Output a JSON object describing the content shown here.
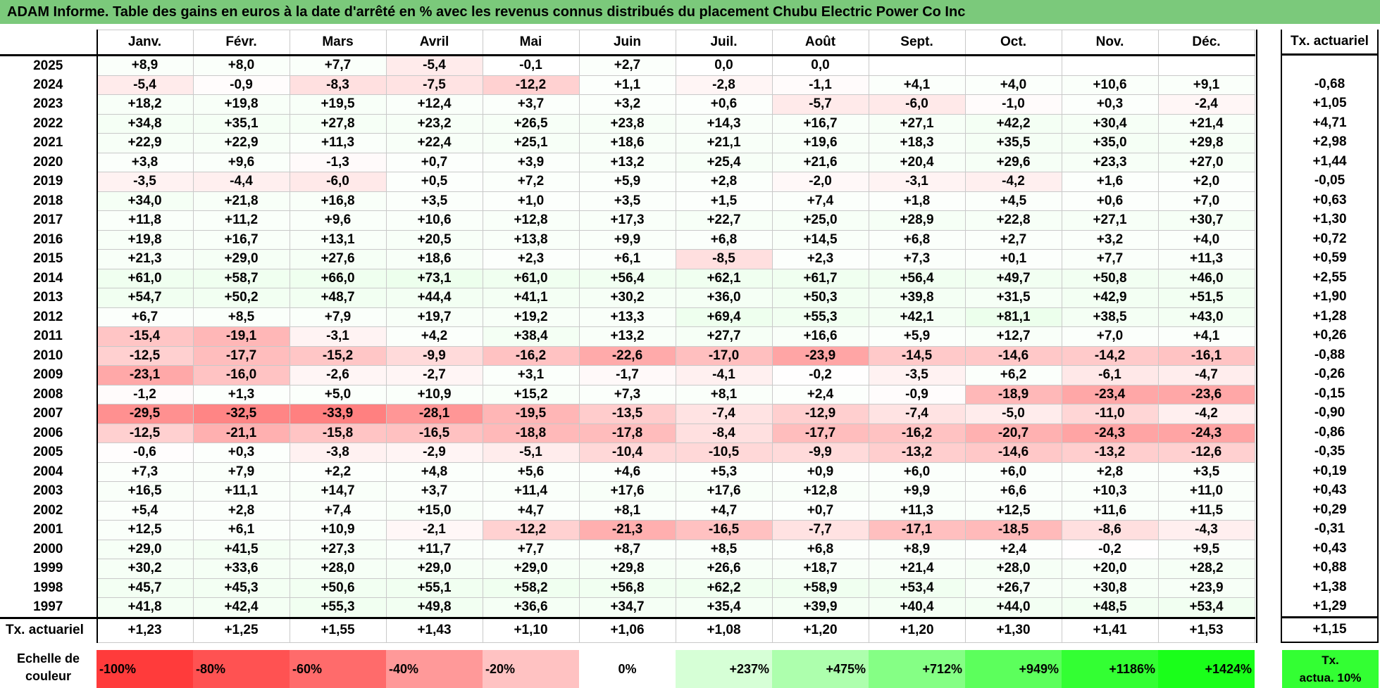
{
  "title": "ADAM Informe. Table des gains en euros à la date d'arrêté en % avec les revenus connus distribués du placement Chubu Electric Power Co Inc",
  "colors": {
    "title_bar": "#7bc97b",
    "neg_base": "#ff0000",
    "pos_base": "#00ff00",
    "legend_act": "#33ff33"
  },
  "chart_data": {
    "type": "table",
    "months": [
      "Janv.",
      "Févr.",
      "Mars",
      "Avril",
      "Mai",
      "Juin",
      "Juil.",
      "Août",
      "Sept.",
      "Oct.",
      "Nov.",
      "Déc."
    ],
    "actuarial_header": "Tx. actuariel",
    "rows": [
      {
        "year": "2025",
        "values": [
          "+8,9",
          "+8,0",
          "+7,7",
          "-5,4",
          "-0,1",
          "+2,7",
          "0,0",
          "0,0",
          "",
          "",
          "",
          ""
        ],
        "rate": ""
      },
      {
        "year": "2024",
        "values": [
          "-5,4",
          "-0,9",
          "-8,3",
          "-7,5",
          "-12,2",
          "+1,1",
          "-2,8",
          "-1,1",
          "+4,1",
          "+4,0",
          "+10,6",
          "+9,1"
        ],
        "rate": "-0,68"
      },
      {
        "year": "2023",
        "values": [
          "+18,2",
          "+19,8",
          "+19,5",
          "+12,4",
          "+3,7",
          "+3,2",
          "+0,6",
          "-5,7",
          "-6,0",
          "-1,0",
          "+0,3",
          "-2,4"
        ],
        "rate": "+1,05"
      },
      {
        "year": "2022",
        "values": [
          "+34,8",
          "+35,1",
          "+27,8",
          "+23,2",
          "+26,5",
          "+23,8",
          "+14,3",
          "+16,7",
          "+27,1",
          "+42,2",
          "+30,4",
          "+21,4"
        ],
        "rate": "+4,71"
      },
      {
        "year": "2021",
        "values": [
          "+22,9",
          "+22,9",
          "+11,3",
          "+22,4",
          "+25,1",
          "+18,6",
          "+21,1",
          "+19,6",
          "+18,3",
          "+35,5",
          "+35,0",
          "+29,8"
        ],
        "rate": "+2,98"
      },
      {
        "year": "2020",
        "values": [
          "+3,8",
          "+9,6",
          "-1,3",
          "+0,7",
          "+3,9",
          "+13,2",
          "+25,4",
          "+21,6",
          "+20,4",
          "+29,6",
          "+23,3",
          "+27,0"
        ],
        "rate": "+1,44"
      },
      {
        "year": "2019",
        "values": [
          "-3,5",
          "-4,4",
          "-6,0",
          "+0,5",
          "+7,2",
          "+5,9",
          "+2,8",
          "-2,0",
          "-3,1",
          "-4,2",
          "+1,6",
          "+2,0"
        ],
        "rate": "-0,05"
      },
      {
        "year": "2018",
        "values": [
          "+34,0",
          "+21,8",
          "+16,8",
          "+3,5",
          "+1,0",
          "+3,5",
          "+1,5",
          "+7,4",
          "+1,8",
          "+4,5",
          "+0,6",
          "+7,0"
        ],
        "rate": "+0,63"
      },
      {
        "year": "2017",
        "values": [
          "+11,8",
          "+11,2",
          "+9,6",
          "+10,6",
          "+12,8",
          "+17,3",
          "+22,7",
          "+25,0",
          "+28,9",
          "+22,8",
          "+27,1",
          "+30,7"
        ],
        "rate": "+1,30"
      },
      {
        "year": "2016",
        "values": [
          "+19,8",
          "+16,7",
          "+13,1",
          "+20,5",
          "+13,8",
          "+9,9",
          "+6,8",
          "+14,5",
          "+6,8",
          "+2,7",
          "+3,2",
          "+4,0"
        ],
        "rate": "+0,72"
      },
      {
        "year": "2015",
        "values": [
          "+21,3",
          "+29,0",
          "+27,6",
          "+18,6",
          "+2,3",
          "+6,1",
          "-8,5",
          "+2,3",
          "+7,3",
          "+0,1",
          "+7,7",
          "+11,3"
        ],
        "rate": "+0,59"
      },
      {
        "year": "2014",
        "values": [
          "+61,0",
          "+58,7",
          "+66,0",
          "+73,1",
          "+61,0",
          "+56,4",
          "+62,1",
          "+61,7",
          "+56,4",
          "+49,7",
          "+50,8",
          "+46,0"
        ],
        "rate": "+2,55"
      },
      {
        "year": "2013",
        "values": [
          "+54,7",
          "+50,2",
          "+48,7",
          "+44,4",
          "+41,1",
          "+30,2",
          "+36,0",
          "+50,3",
          "+39,8",
          "+31,5",
          "+42,9",
          "+51,5"
        ],
        "rate": "+1,90"
      },
      {
        "year": "2012",
        "values": [
          "+6,7",
          "+8,5",
          "+7,9",
          "+19,7",
          "+19,2",
          "+13,3",
          "+69,4",
          "+55,3",
          "+42,1",
          "+81,1",
          "+38,5",
          "+43,0"
        ],
        "rate": "+1,28"
      },
      {
        "year": "2011",
        "values": [
          "-15,4",
          "-19,1",
          "-3,1",
          "+4,2",
          "+38,4",
          "+13,2",
          "+27,7",
          "+16,6",
          "+5,9",
          "+12,7",
          "+7,0",
          "+4,1"
        ],
        "rate": "+0,26"
      },
      {
        "year": "2010",
        "values": [
          "-12,5",
          "-17,7",
          "-15,2",
          "-9,9",
          "-16,2",
          "-22,6",
          "-17,0",
          "-23,9",
          "-14,5",
          "-14,6",
          "-14,2",
          "-16,1"
        ],
        "rate": "-0,88"
      },
      {
        "year": "2009",
        "values": [
          "-23,1",
          "-16,0",
          "-2,6",
          "-2,7",
          "+3,1",
          "-1,7",
          "-4,1",
          "-0,2",
          "-3,5",
          "+6,2",
          "-6,1",
          "-4,7"
        ],
        "rate": "-0,26"
      },
      {
        "year": "2008",
        "values": [
          "-1,2",
          "+1,3",
          "+5,0",
          "+10,9",
          "+15,2",
          "+7,3",
          "+8,1",
          "+2,4",
          "-0,9",
          "-18,9",
          "-23,4",
          "-23,6"
        ],
        "rate": "-0,15"
      },
      {
        "year": "2007",
        "values": [
          "-29,5",
          "-32,5",
          "-33,9",
          "-28,1",
          "-19,5",
          "-13,5",
          "-7,4",
          "-12,9",
          "-7,4",
          "-5,0",
          "-11,0",
          "-4,2"
        ],
        "rate": "-0,90"
      },
      {
        "year": "2006",
        "values": [
          "-12,5",
          "-21,1",
          "-15,8",
          "-16,5",
          "-18,8",
          "-17,8",
          "-8,4",
          "-17,7",
          "-16,2",
          "-20,7",
          "-24,3",
          "-24,3"
        ],
        "rate": "-0,86"
      },
      {
        "year": "2005",
        "values": [
          "-0,6",
          "+0,3",
          "-3,8",
          "-2,9",
          "-5,1",
          "-10,4",
          "-10,5",
          "-9,9",
          "-13,2",
          "-14,6",
          "-13,2",
          "-12,6"
        ],
        "rate": "-0,35"
      },
      {
        "year": "2004",
        "values": [
          "+7,3",
          "+7,9",
          "+2,2",
          "+4,8",
          "+5,6",
          "+4,6",
          "+5,3",
          "+0,9",
          "+6,0",
          "+6,0",
          "+2,8",
          "+3,5"
        ],
        "rate": "+0,19"
      },
      {
        "year": "2003",
        "values": [
          "+16,5",
          "+11,1",
          "+14,7",
          "+3,7",
          "+11,4",
          "+17,6",
          "+17,6",
          "+12,8",
          "+9,9",
          "+6,6",
          "+10,3",
          "+11,0"
        ],
        "rate": "+0,43"
      },
      {
        "year": "2002",
        "values": [
          "+5,4",
          "+2,8",
          "+7,4",
          "+15,0",
          "+4,7",
          "+8,1",
          "+4,7",
          "+0,7",
          "+11,3",
          "+12,5",
          "+11,6",
          "+11,5"
        ],
        "rate": "+0,29"
      },
      {
        "year": "2001",
        "values": [
          "+12,5",
          "+6,1",
          "+10,9",
          "-2,1",
          "-12,2",
          "-21,3",
          "-16,5",
          "-7,7",
          "-17,1",
          "-18,5",
          "-8,6",
          "-4,3"
        ],
        "rate": "-0,31"
      },
      {
        "year": "2000",
        "values": [
          "+29,0",
          "+41,5",
          "+27,3",
          "+11,7",
          "+7,7",
          "+8,7",
          "+8,5",
          "+6,8",
          "+8,9",
          "+2,4",
          "-0,2",
          "+9,5"
        ],
        "rate": "+0,43"
      },
      {
        "year": "1999",
        "values": [
          "+30,2",
          "+33,6",
          "+28,0",
          "+29,0",
          "+29,0",
          "+29,8",
          "+26,6",
          "+18,7",
          "+21,4",
          "+28,0",
          "+20,0",
          "+28,2"
        ],
        "rate": "+0,88"
      },
      {
        "year": "1998",
        "values": [
          "+45,7",
          "+45,3",
          "+50,6",
          "+55,1",
          "+58,2",
          "+56,8",
          "+62,2",
          "+58,9",
          "+53,4",
          "+26,7",
          "+30,8",
          "+23,9"
        ],
        "rate": "+1,38"
      },
      {
        "year": "1997",
        "values": [
          "+41,8",
          "+42,4",
          "+55,3",
          "+49,8",
          "+36,6",
          "+34,7",
          "+35,4",
          "+39,9",
          "+40,4",
          "+44,0",
          "+48,5",
          "+53,4"
        ],
        "rate": "+1,29"
      }
    ],
    "footer": {
      "label": "Tx. actuariel",
      "values": [
        "+1,23",
        "+1,25",
        "+1,55",
        "+1,43",
        "+1,10",
        "+1,06",
        "+1,08",
        "+1,20",
        "+1,20",
        "+1,30",
        "+1,41",
        "+1,53"
      ],
      "rate": "+1,15"
    },
    "color_scale": {
      "label_line1": "Echelle de",
      "label_line2": "couleur",
      "steps": [
        {
          "text": "-100%",
          "color": "#ff3b3b"
        },
        {
          "text": "-80%",
          "color": "#ff5252"
        },
        {
          "text": "-60%",
          "color": "#ff6b6b"
        },
        {
          "text": "-40%",
          "color": "#ff9999"
        },
        {
          "text": "-20%",
          "color": "#ffc2c2"
        },
        {
          "text": "0%",
          "color": "#ffffff"
        },
        {
          "text": "+237%",
          "color": "#d6ffd6"
        },
        {
          "text": "+475%",
          "color": "#adffad"
        },
        {
          "text": "+712%",
          "color": "#85ff85"
        },
        {
          "text": "+949%",
          "color": "#5cff5c"
        },
        {
          "text": "+1186%",
          "color": "#33ff33"
        },
        {
          "text": "+1424%",
          "color": "#1aff1a"
        }
      ],
      "act_line1": "Tx.",
      "act_line2": "actua. 10%",
      "act_color": "#33ff33"
    }
  }
}
